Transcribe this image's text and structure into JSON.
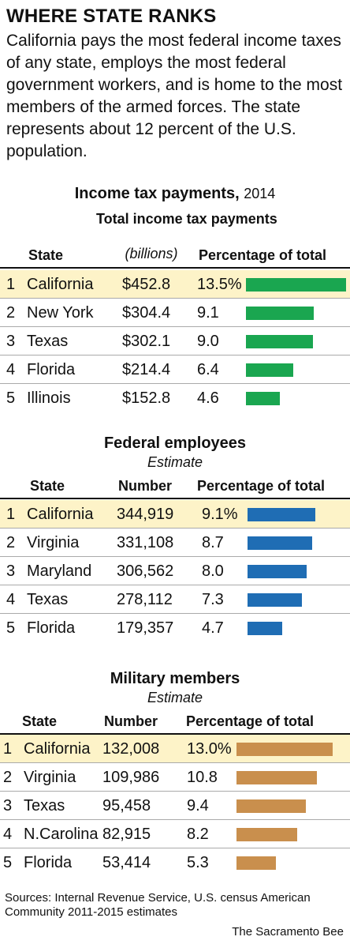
{
  "title": "WHERE STATE RANKS",
  "intro": "California pays the most federal income taxes of any state, employs the most federal government workers, and is home to the most members of the armed forces. The state represents about 12 percent of the U.S. population.",
  "chart_data": [
    {
      "type": "table",
      "title": "Income tax payments,",
      "subtitle": "2014",
      "columns": [
        "State",
        "Total income tax payments",
        "(billions)",
        "Percentage of total"
      ],
      "bar_color": "#1aa650",
      "rows": [
        {
          "rank": "1",
          "state": "California",
          "value": "$452.8",
          "pct_label": "13.5%",
          "pct": 13.5
        },
        {
          "rank": "2",
          "state": "New York",
          "value": "$304.4",
          "pct_label": "9.1",
          "pct": 9.1
        },
        {
          "rank": "3",
          "state": "Texas",
          "value": "$302.1",
          "pct_label": "9.0",
          "pct": 9.0
        },
        {
          "rank": "4",
          "state": "Florida",
          "value": "$214.4",
          "pct_label": "6.4",
          "pct": 6.4
        },
        {
          "rank": "5",
          "state": "Illinois",
          "value": "$152.8",
          "pct_label": "4.6",
          "pct": 4.6
        }
      ]
    },
    {
      "type": "table",
      "title": "Federal employees",
      "subtitle": "Estimate",
      "columns": [
        "State",
        "Number",
        "Percentage of total"
      ],
      "bar_color": "#1f6db4",
      "rows": [
        {
          "rank": "1",
          "state": "California",
          "value": "344,919",
          "pct_label": "9.1%",
          "pct": 9.1
        },
        {
          "rank": "2",
          "state": "Virginia",
          "value": "331,108",
          "pct_label": "8.7",
          "pct": 8.7
        },
        {
          "rank": "3",
          "state": "Maryland",
          "value": "306,562",
          "pct_label": "8.0",
          "pct": 8.0
        },
        {
          "rank": "4",
          "state": "Texas",
          "value": "278,112",
          "pct_label": "7.3",
          "pct": 7.3
        },
        {
          "rank": "5",
          "state": "Florida",
          "value": "179,357",
          "pct_label": "4.7",
          "pct": 4.7
        }
      ]
    },
    {
      "type": "table",
      "title": "Military members",
      "subtitle": "Estimate",
      "columns": [
        "State",
        "Number",
        "Percentage of total"
      ],
      "bar_color": "#c98f4d",
      "rows": [
        {
          "rank": "1",
          "state": "California",
          "value": "132,008",
          "pct_label": "13.0%",
          "pct": 13.0
        },
        {
          "rank": "2",
          "state": "Virginia",
          "value": "109,986",
          "pct_label": "10.8",
          "pct": 10.8
        },
        {
          "rank": "3",
          "state": "Texas",
          "value": "95,458",
          "pct_label": "9.4",
          "pct": 9.4
        },
        {
          "rank": "4",
          "state": "N.Carolina",
          "value": "82,915",
          "pct_label": "8.2",
          "pct": 8.2
        },
        {
          "rank": "5",
          "state": "Florida",
          "value": "53,414",
          "pct_label": "5.3",
          "pct": 5.3
        }
      ]
    }
  ],
  "sources": "Sources: Internal Revenue Service, U.S. census American Community 2011-2015 estimates",
  "credit": "The Sacramento Bee"
}
